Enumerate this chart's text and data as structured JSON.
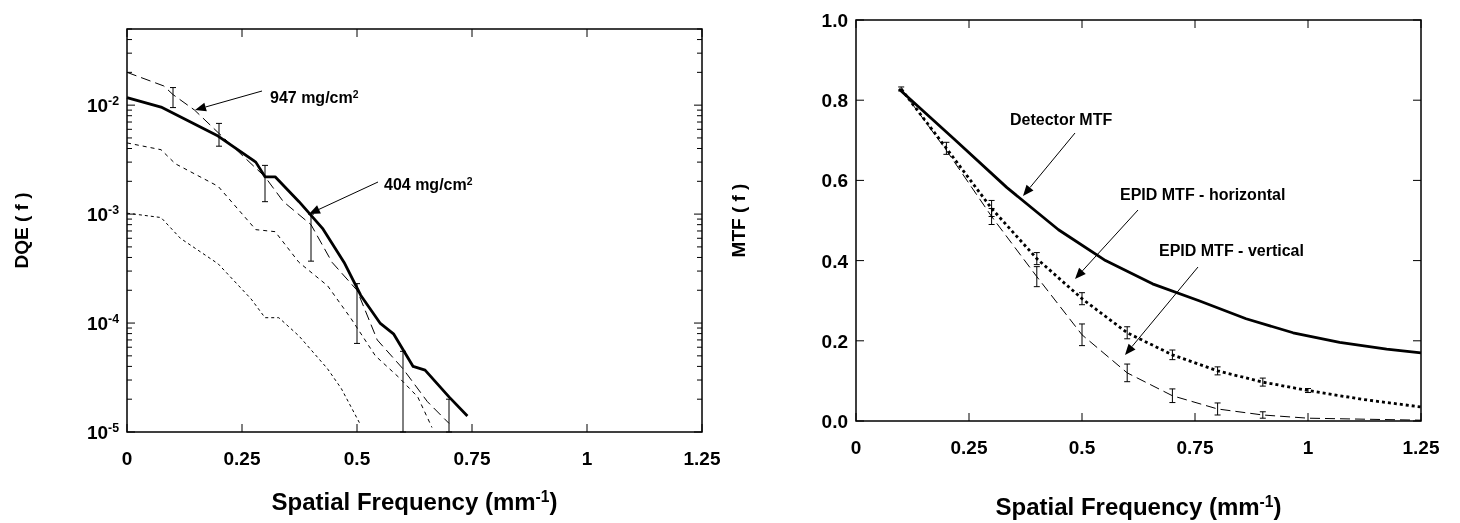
{
  "chart_data": [
    {
      "type": "line",
      "xlabel": "Spatial Frequency (mm$^{-1}$)",
      "ylabel": "DQE ( f )",
      "log": "y",
      "xlim": [
        0,
        1.25
      ],
      "xticks": [
        0,
        0.25,
        0.5,
        0.75,
        1,
        1.25
      ],
      "ylim": [
        1e-05,
        0.05
      ],
      "yticks": [
        {
          "value": 1e-05,
          "label": "10$^{-5}$"
        },
        {
          "value": 0.0001,
          "label": "10$^{-4}$"
        },
        {
          "value": 0.001,
          "label": "10$^{-3}$"
        },
        {
          "value": 0.01,
          "label": "10$^{-2}$"
        }
      ],
      "annotations": [
        "947 mg/cm$^{2}$",
        "404 mg/cm$^{2}$"
      ],
      "series": [
        {
          "color": "#000000",
          "line_style": "dashed",
          "x": [
            0,
            0.08,
            0.1,
            0.147,
            0.2,
            0.3,
            0.34,
            0.4,
            0.446,
            0.5,
            0.544,
            0.6,
            0.653,
            0.7
          ],
          "values": [
            0.02,
            0.015,
            0.0125,
            0.009,
            0.0055,
            0.0022,
            0.0013,
            0.0008,
            0.00036,
            0.0002,
            7e-05,
            3.8e-05,
            1.9e-05,
            1.2e-05
          ],
          "errors": [
            null,
            null,
            [
              0.0095,
              0.0145
            ],
            null,
            [
              0.0042,
              0.0068
            ],
            [
              0.0013,
              0.0028
            ],
            null,
            [
              0.00037,
              0.001
            ],
            null,
            [
              6.5e-05,
              0.00023
            ],
            null,
            [
              1e-05,
              5.5e-05
            ],
            null,
            [
              1e-05,
              2e-05
            ]
          ]
        },
        {
          "color": "#000000",
          "line_style": "solid",
          "x": [
            0,
            0.074,
            0.198,
            0.28,
            0.3,
            0.322,
            0.374,
            0.425,
            0.472,
            0.508,
            0.55,
            0.58,
            0.622,
            0.648,
            0.7,
            0.74
          ],
          "values": [
            0.0117,
            0.0096,
            0.0052,
            0.003,
            0.0022,
            0.0022,
            0.0013,
            0.00074,
            0.00036,
            0.00018,
            0.0001,
            7.9e-05,
            4e-05,
            3.7e-05,
            2.1e-05,
            1.4e-05
          ]
        },
        {
          "color": "#000000",
          "line_style": "dashed",
          "x": [
            0,
            0.074,
            0.105,
            0.198,
            0.28,
            0.322,
            0.374,
            0.436,
            0.487,
            0.54,
            0.59,
            0.632,
            0.663
          ],
          "values": [
            0.0045,
            0.0039,
            0.0029,
            0.0018,
            0.00072,
            0.00069,
            0.00036,
            0.00022,
            0.00011,
            5e-05,
            3.2e-05,
            2.1e-05,
            1.1e-05
          ]
        },
        {
          "color": "#000000",
          "line_style": "dotted",
          "x": [
            0,
            0.074,
            0.116,
            0.198,
            0.27,
            0.3,
            0.33,
            0.374,
            0.436,
            0.466,
            0.506
          ],
          "values": [
            0.00102,
            0.00093,
            0.0006,
            0.00035,
            0.000166,
            0.000112,
            0.000112,
            7.6e-05,
            3.8e-05,
            2.5e-05,
            1.2e-05
          ]
        }
      ]
    },
    {
      "type": "line",
      "xlabel": "Spatial Frequency (mm$^{-1}$)",
      "ylabel": "MTF ( f )",
      "xlim": [
        0,
        1.25
      ],
      "xticks": [
        0,
        0.25,
        0.5,
        0.75,
        1,
        1.25
      ],
      "ylim": [
        0,
        1
      ],
      "yticks": [
        {
          "value": 0,
          "label": "0.0"
        },
        {
          "value": 0.2,
          "label": "0.2"
        },
        {
          "value": 0.4,
          "label": "0.4"
        },
        {
          "value": 0.6,
          "label": "0.6"
        },
        {
          "value": 0.8,
          "label": "0.8"
        },
        {
          "value": 1,
          "label": "1.0"
        }
      ],
      "annotations": [
        "Detector MTF",
        "EPID MTF - horizontal",
        "EPID MTF - vertical"
      ],
      "series": [
        {
          "color": "#000000",
          "line_style": "solid",
          "x": [
            0.095,
            0.22,
            0.334,
            0.448,
            0.552,
            0.656,
            0.759,
            0.863,
            0.967,
            1.07,
            1.174,
            1.25
          ],
          "values": [
            0.828,
            0.7,
            0.582,
            0.477,
            0.4,
            0.342,
            0.3,
            0.255,
            0.22,
            0.196,
            0.179,
            0.17
          ]
        },
        {
          "color": "#000000",
          "line_style": "dotted",
          "x": [
            0.1,
            0.2,
            0.3,
            0.4,
            0.5,
            0.6,
            0.7,
            0.8,
            0.9,
            1.0,
            1.12,
            1.25
          ],
          "values": [
            0.828,
            0.68,
            0.53,
            0.405,
            0.305,
            0.22,
            0.165,
            0.125,
            0.097,
            0.076,
            0.054,
            0.035
          ],
          "errors": [
            0.005,
            0.015,
            0.02,
            0.015,
            0.015,
            0.015,
            0.012,
            0.01,
            0.01,
            0.005,
            null,
            null
          ]
        },
        {
          "color": "#000000",
          "line_style": "dashed",
          "x": [
            0.1,
            0.2,
            0.3,
            0.4,
            0.5,
            0.6,
            0.7,
            0.8,
            0.9,
            1.0,
            1.25
          ],
          "values": [
            0.828,
            0.675,
            0.51,
            0.36,
            0.215,
            0.12,
            0.063,
            0.03,
            0.015,
            0.007,
            0.002
          ],
          "errors": [
            null,
            null,
            0.02,
            0.025,
            0.027,
            0.022,
            0.017,
            0.015,
            0.008,
            null,
            null
          ]
        }
      ]
    }
  ]
}
